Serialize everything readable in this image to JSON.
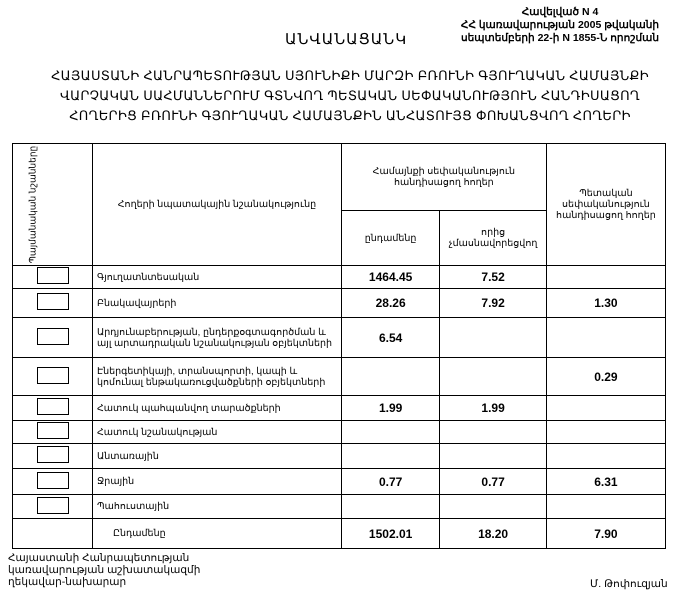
{
  "annex": {
    "line1": "Հավելված N 4",
    "line2": "ՀՀ կառավարության 2005 թվականի",
    "line3": "սեպտեմբերի 22-ի N 1855-Ն որոշման"
  },
  "title": "ԱՆՎԱՆԱՑԱՆԿ",
  "heading": {
    "line1": "ՀԱՅԱՍՏԱՆԻ ՀԱՆՐԱՊԵՏՈՒԹՅԱՆ ՍՅՈՒՆԻՔԻ ՄԱՐԶԻ ԲՌՈՒՆԻ ԳՅՈՒՂԱԿԱՆ ՀԱՄԱՅՆՔԻ",
    "line2": "ՎԱՐՉԱԿԱՆ ՍԱՀՄԱՆՆԵՐՈՒՄ ԳՏՆՎՈՂ ՊԵՏԱԿԱՆ ՍԵՓԱԿԱՆՈՒԹՅՈՒՆ ՀԱՆԴԻՍԱՑՈՂ",
    "line3": "ՀՈՂԵՐԻՑ ԲՌՈՒՆԻ ԳՅՈՒՂԱԿԱՆ ՀԱՄԱՅՆՔԻՆ ԱՆՀԱՏՈՒՅՑ ՓՈԽԱՆՑՎՈՂ ՀՈՂԵՐԻ"
  },
  "table": {
    "headers": {
      "symbols": "Պայմանական նշանները",
      "purpose": "Հողերի նպատակային նշանակությունը",
      "community": "Համայնքի սեփականություն հանդիսացող հողեր",
      "total": "ընդամենը",
      "non_privatized": "որից չմասնավորեցվող",
      "state": "Պետական սեփականություն հանդիսացող հողեր"
    },
    "rows": [
      {
        "label": "Գյուղատնտեսական",
        "total": "1464.45",
        "non_privatized": "7.52",
        "state": ""
      },
      {
        "label": "Բնակավայրերի",
        "total": "28.26",
        "non_privatized": "7.92",
        "state": "1.30"
      },
      {
        "label": "Արդյունաբերության, ընդերքօգտագործման և այլ արտադրական նշանակության օբյեկտների",
        "total": "6.54",
        "non_privatized": "",
        "state": ""
      },
      {
        "label": "Էներգետիկայի, տրանսպորտի, կապի և կոմունալ ենթակառուցվածքների օբյեկտների",
        "total": "",
        "non_privatized": "",
        "state": "0.29"
      },
      {
        "label": "Հատուկ պահպանվող տարածքների",
        "total": "1.99",
        "non_privatized": "1.99",
        "state": ""
      },
      {
        "label": "Հատուկ նշանակության",
        "total": "",
        "non_privatized": "",
        "state": ""
      },
      {
        "label": "Անտառային",
        "total": "",
        "non_privatized": "",
        "state": ""
      },
      {
        "label": "Ջրային",
        "total": "0.77",
        "non_privatized": "0.77",
        "state": "6.31"
      },
      {
        "label": "Պահուստային",
        "total": "",
        "non_privatized": "",
        "state": ""
      }
    ],
    "totals": {
      "label": "Ընդամենը",
      "total": "1502.01",
      "non_privatized": "18.20",
      "state": "7.90"
    }
  },
  "footer": {
    "line1": "Հայաստանի Հանրապետության",
    "line2": "կառավարության աշխատակազմի",
    "line3": "ղեկավար-նախարար",
    "signature": "Մ. Թոփուզյան"
  }
}
